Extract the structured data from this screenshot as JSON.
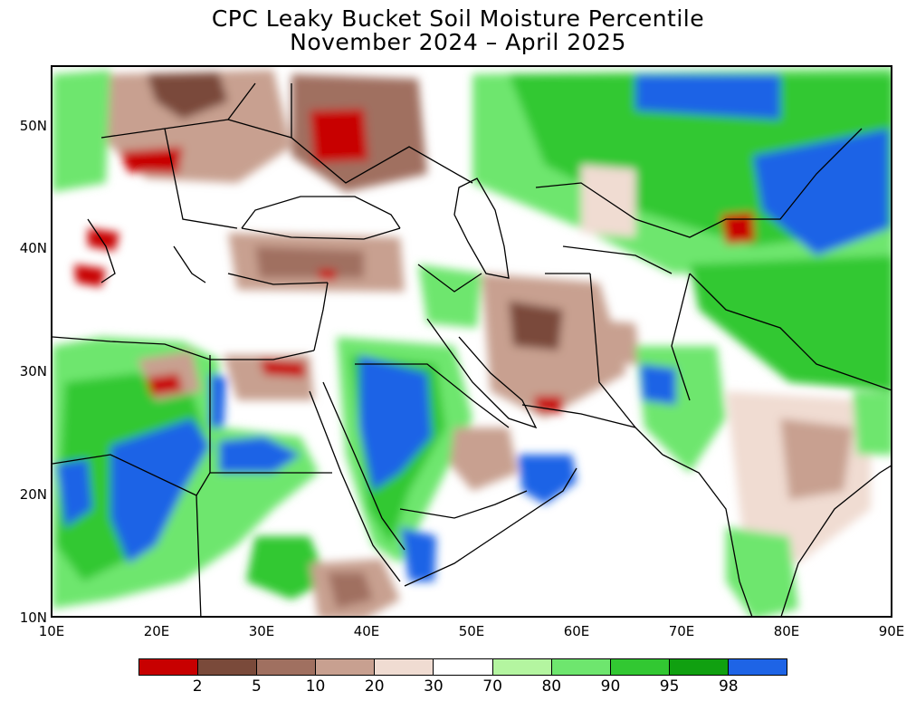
{
  "title": {
    "line1": "CPC Leaky Bucket Soil Moisture Percentile",
    "line2": "November 2024 – April 2025"
  },
  "axes": {
    "lat_labels": [
      "50N",
      "40N",
      "30N",
      "20N",
      "10N"
    ],
    "lon_labels": [
      "10E",
      "20E",
      "30E",
      "40E",
      "50E",
      "60E",
      "70E",
      "80E",
      "90E"
    ]
  },
  "legend": {
    "labels": [
      "2",
      "5",
      "10",
      "20",
      "30",
      "70",
      "80",
      "90",
      "95",
      "98"
    ],
    "colors": [
      "#c80000",
      "#7a4a3a",
      "#a07060",
      "#c8a090",
      "#f0dcd2",
      "#ffffff",
      "#b4f5a0",
      "#6ee66e",
      "#32c832",
      "#10a010",
      "#1e64e6"
    ]
  },
  "map": {
    "colors": {
      "very_dry": "#c80000",
      "dry_2": "#7a4a3a",
      "dry_5": "#a07060",
      "dry_10": "#c8a090",
      "dry_20": "#f0dcd2",
      "normal": "#ffffff",
      "wet_70": "#b4f5a0",
      "wet_80": "#6ee66e",
      "wet_90": "#32c832",
      "wet_95": "#10a010",
      "very_wet": "#1e64e6"
    }
  }
}
